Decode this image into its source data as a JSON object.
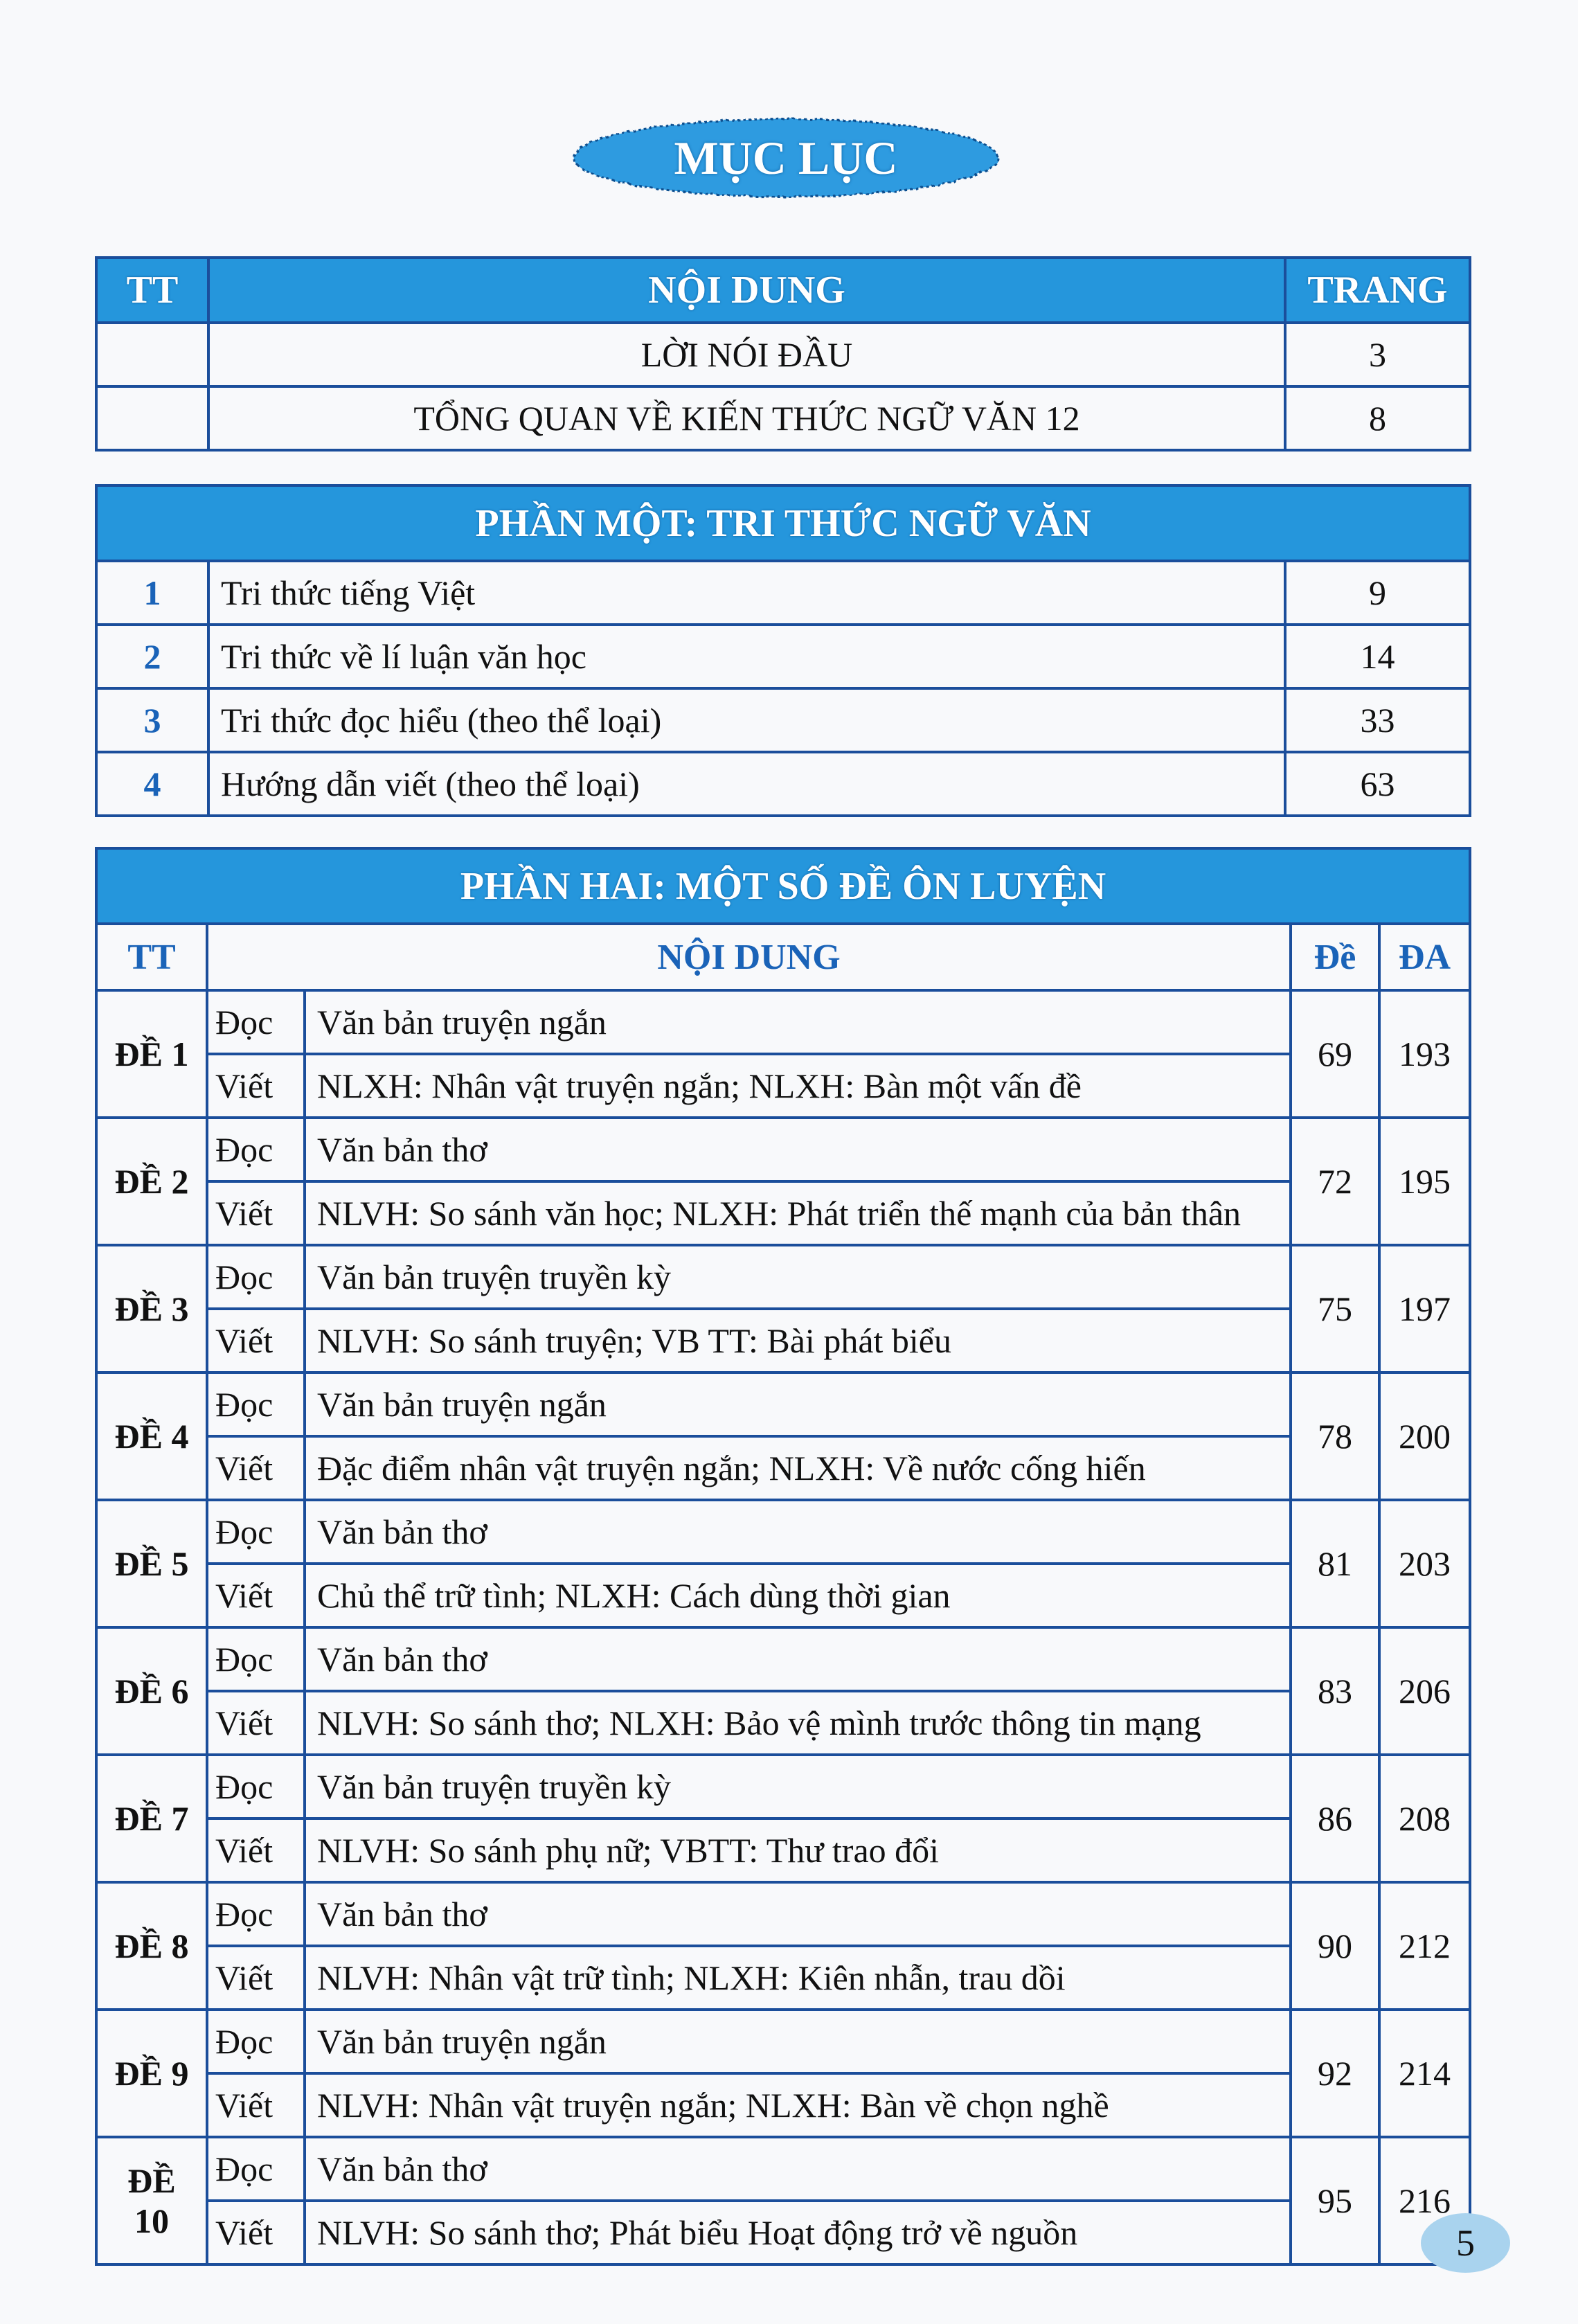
{
  "title": "MỤC LỤC",
  "intro_table": {
    "headers": [
      "TT",
      "NỘI DUNG",
      "TRANG"
    ],
    "rows": [
      {
        "tt": "",
        "content": "LỜI NÓI ĐẦU",
        "page": "3"
      },
      {
        "tt": "",
        "content": "TỔNG QUAN VỀ KIẾN THỨC NGỮ VĂN 12",
        "page": "8"
      }
    ]
  },
  "part_one": {
    "title": "PHẦN MỘT: TRI THỨC NGỮ VĂN",
    "rows": [
      {
        "tt": "1",
        "content": "Tri thức tiếng Việt",
        "page": "9"
      },
      {
        "tt": "2",
        "content": "Tri thức về lí luận văn học",
        "page": "14"
      },
      {
        "tt": "3",
        "content": "Tri thức đọc hiểu (theo thể loại)",
        "page": "33"
      },
      {
        "tt": "4",
        "content": "Hướng dẫn viết (theo thể loại)",
        "page": "63"
      }
    ]
  },
  "part_two": {
    "title": "PHẦN HAI: MỘT SỐ ĐỀ ÔN LUYỆN",
    "headers": [
      "TT",
      "NỘI DUNG",
      "Đề",
      "ĐA"
    ],
    "labels": {
      "read": "Đọc",
      "write": "Viết"
    },
    "rows": [
      {
        "tt": "ĐỀ 1",
        "read": "Văn bản truyện ngắn",
        "write": "NLXH: Nhân vật truyện ngắn; NLXH: Bàn một vấn đề",
        "de": "69",
        "da": "193"
      },
      {
        "tt": "ĐỀ 2",
        "read": "Văn bản thơ",
        "write": "NLVH: So sánh văn học; NLXH: Phát triển thế mạnh của bản thân",
        "de": "72",
        "da": "195"
      },
      {
        "tt": "ĐỀ 3",
        "read": "Văn bản truyện truyền kỳ",
        "write": "NLVH: So sánh truyện; VB TT: Bài phát biểu",
        "de": "75",
        "da": "197"
      },
      {
        "tt": "ĐỀ 4",
        "read": "Văn bản truyện ngắn",
        "write": "Đặc điểm nhân vật truyện ngắn; NLXH: Về nước cống hiến",
        "de": "78",
        "da": "200"
      },
      {
        "tt": "ĐỀ 5",
        "read": "Văn bản thơ",
        "write": "Chủ thể trữ tình; NLXH: Cách dùng thời gian",
        "de": "81",
        "da": "203"
      },
      {
        "tt": "ĐỀ 6",
        "read": "Văn bản thơ",
        "write": "NLVH: So sánh thơ; NLXH: Bảo vệ mình trước thông tin mạng",
        "de": "83",
        "da": "206"
      },
      {
        "tt": "ĐỀ 7",
        "read": "Văn bản truyện truyền kỳ",
        "write": "NLVH: So sánh phụ nữ; VBTT: Thư trao đổi",
        "de": "86",
        "da": "208"
      },
      {
        "tt": "ĐỀ 8",
        "read": "Văn bản thơ",
        "write": "NLVH: Nhân vật trữ tình; NLXH: Kiên nhẫn, trau dồi",
        "de": "90",
        "da": "212"
      },
      {
        "tt": "ĐỀ 9",
        "read": "Văn bản truyện ngắn",
        "write": "NLVH: Nhân vật truyện ngắn; NLXH: Bàn về chọn nghề",
        "de": "92",
        "da": "214"
      },
      {
        "tt": "ĐỀ 10",
        "read": "Văn bản thơ",
        "write": "NLVH: So sánh thơ; Phát biểu Hoạt động trở về nguồn",
        "de": "95",
        "da": "216"
      }
    ]
  },
  "page_number": "5",
  "colors": {
    "header_blue": "#2596dc",
    "border": "#1b4e9b",
    "accent_text": "#1a63b8"
  }
}
